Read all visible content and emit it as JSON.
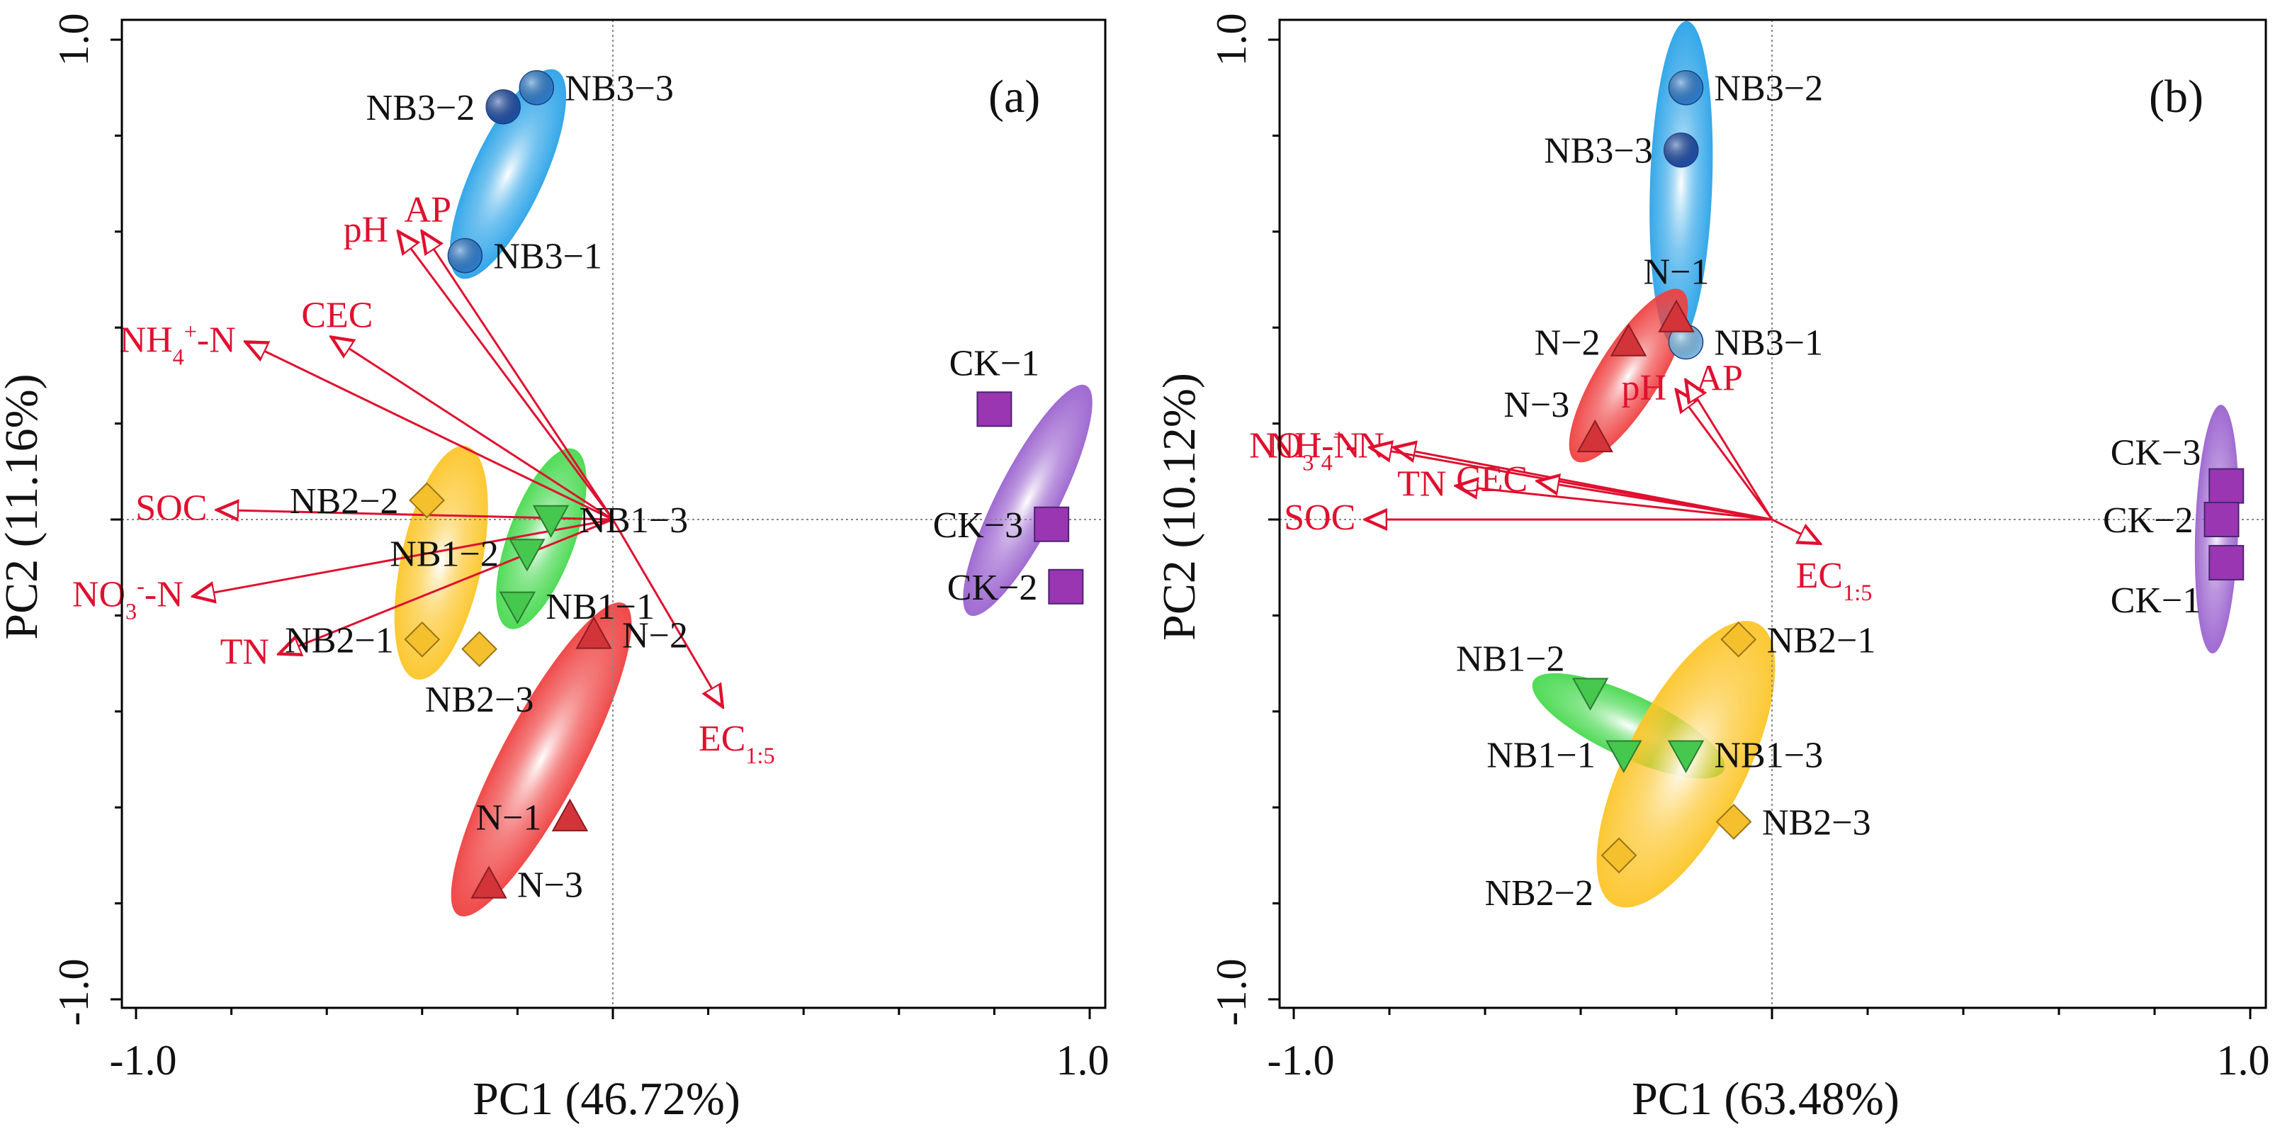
{
  "colors": {
    "vector": "#e0102f",
    "axis": "#000000",
    "text": "#111111",
    "grid": "#888888"
  },
  "groups": {
    "NB3": {
      "color": "#2aa3e8",
      "marker": "circle",
      "marker_color": "#2d7fd0"
    },
    "N": {
      "color": "#ef4040",
      "marker": "triangle-up",
      "marker_color": "#d2343a"
    },
    "NB1": {
      "color": "#47d94f",
      "marker": "triangle-down",
      "marker_color": "#46c74e"
    },
    "NB2": {
      "color": "#fcc528",
      "marker": "diamond",
      "marker_color": "#f5c02e"
    },
    "CK": {
      "color": "#9b63cf",
      "marker": "square",
      "marker_color": "#9a36b2"
    }
  },
  "chart_data": [
    {
      "type": "scatter",
      "panel_label": "(a)",
      "xlabel": "PC1 (46.72%)",
      "ylabel": "PC2 (11.16%)",
      "xlim": [
        -1.0,
        1.0
      ],
      "ylim": [
        -1.0,
        1.0
      ],
      "xticks": [
        "-1.0",
        "1.0"
      ],
      "yticks": [
        "1.0",
        "-1.0"
      ],
      "points": [
        {
          "label": "NB3−3",
          "group": "NB3",
          "x": -0.16,
          "y": 0.9,
          "marker_color": "#2d7fd0",
          "label_side": "right"
        },
        {
          "label": "NB3−2",
          "group": "NB3",
          "x": -0.23,
          "y": 0.86,
          "marker_color": "#1f4fa8",
          "label_side": "left"
        },
        {
          "label": "NB3−1",
          "group": "NB3",
          "x": -0.31,
          "y": 0.55,
          "marker_color": "#2d7fd0",
          "label_side": "right"
        },
        {
          "label": "NB1−3",
          "group": "NB1",
          "x": -0.13,
          "y": 0.0,
          "label_side": "right"
        },
        {
          "label": "NB1−1",
          "group": "NB1",
          "x": -0.2,
          "y": -0.18,
          "label_side": "right"
        },
        {
          "label": "NB1−2",
          "group": "NB1",
          "x": -0.18,
          "y": -0.07,
          "label_side": "left"
        },
        {
          "label": "NB2−2",
          "group": "NB2",
          "x": -0.39,
          "y": 0.04,
          "label_side": "left"
        },
        {
          "label": "NB2−1",
          "group": "NB2",
          "x": -0.4,
          "y": -0.25,
          "label_side": "left"
        },
        {
          "label": "NB2−3",
          "group": "NB2",
          "x": -0.28,
          "y": -0.27,
          "label_side": "below"
        },
        {
          "label": "N−2",
          "group": "N",
          "x": -0.04,
          "y": -0.24,
          "label_side": "right"
        },
        {
          "label": "N−1",
          "group": "N",
          "x": -0.09,
          "y": -0.62,
          "label_side": "left"
        },
        {
          "label": "N−3",
          "group": "N",
          "x": -0.26,
          "y": -0.76,
          "label_side": "right"
        },
        {
          "label": "CK−1",
          "group": "CK",
          "x": 0.8,
          "y": 0.23,
          "label_side": "above"
        },
        {
          "label": "CK−3",
          "group": "CK",
          "x": 0.92,
          "y": -0.01,
          "label_side": "left"
        },
        {
          "label": "CK−2",
          "group": "CK",
          "x": 0.95,
          "y": -0.14,
          "label_side": "left"
        }
      ],
      "ellipses": [
        {
          "group": "NB3",
          "cx": -0.22,
          "cy": 0.72,
          "rx": 0.24,
          "ry": 0.075,
          "angle": 65
        },
        {
          "group": "NB2",
          "cx": -0.36,
          "cy": -0.09,
          "rx": 0.25,
          "ry": 0.085,
          "angle": 78
        },
        {
          "group": "NB1",
          "cx": -0.15,
          "cy": -0.04,
          "rx": 0.2,
          "ry": 0.07,
          "angle": 70
        },
        {
          "group": "N",
          "cx": -0.15,
          "cy": -0.5,
          "rx": 0.37,
          "ry": 0.085,
          "angle": 62
        },
        {
          "group": "CK",
          "cx": 0.87,
          "cy": 0.04,
          "rx": 0.27,
          "ry": 0.065,
          "angle": 63
        }
      ],
      "vectors": [
        {
          "label": "SOC",
          "x": -0.83,
          "y": 0.02,
          "label_anchor": "left",
          "sub": "",
          "sup": ""
        },
        {
          "label": "NH4+-N",
          "x": -0.77,
          "y": 0.37,
          "label_anchor": "left"
        },
        {
          "label": "CEC",
          "x": -0.59,
          "y": 0.38,
          "label_anchor": "above"
        },
        {
          "label": "pH",
          "x": -0.45,
          "y": 0.6,
          "label_anchor": "left"
        },
        {
          "label": "AP",
          "x": -0.4,
          "y": 0.6,
          "label_anchor": "above"
        },
        {
          "label": "NO3--N",
          "x": -0.88,
          "y": -0.16,
          "label_anchor": "left"
        },
        {
          "label": "TN",
          "x": -0.7,
          "y": -0.28,
          "label_anchor": "left"
        },
        {
          "label": "EC1:5",
          "x": 0.23,
          "y": -0.39,
          "label_anchor": "below"
        }
      ]
    },
    {
      "type": "scatter",
      "panel_label": "(b)",
      "xlabel": "PC1 (63.48%)",
      "ylabel": "PC2 (10.12%)",
      "xlim": [
        -1.0,
        1.0
      ],
      "ylim": [
        -1.0,
        1.0
      ],
      "xticks": [
        "-1.0",
        "1.0"
      ],
      "yticks": [
        "1.0",
        "-1.0"
      ],
      "points": [
        {
          "label": "NB3−2",
          "group": "NB3",
          "x": -0.18,
          "y": 0.9,
          "marker_color": "#2d7fd0",
          "label_side": "right"
        },
        {
          "label": "NB3−3",
          "group": "NB3",
          "x": -0.19,
          "y": 0.77,
          "marker_color": "#1f4fa8",
          "label_side": "left"
        },
        {
          "label": "NB3−1",
          "group": "NB3",
          "x": -0.18,
          "y": 0.37,
          "marker_color": "#7fbde8",
          "label_side": "right"
        },
        {
          "label": "N−1",
          "group": "N",
          "x": -0.2,
          "y": 0.42,
          "label_side": "above"
        },
        {
          "label": "N−2",
          "group": "N",
          "x": -0.3,
          "y": 0.37,
          "label_side": "left"
        },
        {
          "label": "N−3",
          "group": "N",
          "x": -0.37,
          "y": 0.17,
          "label_side": "above-left"
        },
        {
          "label": "CK−3",
          "group": "CK",
          "x": 0.95,
          "y": 0.07,
          "label_side": "above-left"
        },
        {
          "label": "CK−2",
          "group": "CK",
          "x": 0.94,
          "y": 0.0,
          "label_side": "left"
        },
        {
          "label": "CK−1",
          "group": "CK",
          "x": 0.95,
          "y": -0.09,
          "label_side": "below-left"
        },
        {
          "label": "NB2−1",
          "group": "NB2",
          "x": -0.07,
          "y": -0.25,
          "label_side": "right"
        },
        {
          "label": "NB1−2",
          "group": "NB1",
          "x": -0.38,
          "y": -0.36,
          "label_side": "above-left"
        },
        {
          "label": "NB1−1",
          "group": "NB1",
          "x": -0.31,
          "y": -0.49,
          "label_side": "left"
        },
        {
          "label": "NB1−3",
          "group": "NB1",
          "x": -0.18,
          "y": -0.49,
          "label_side": "right"
        },
        {
          "label": "NB2−3",
          "group": "NB2",
          "x": -0.08,
          "y": -0.63,
          "label_side": "right"
        },
        {
          "label": "NB2−2",
          "group": "NB2",
          "x": -0.32,
          "y": -0.7,
          "label_side": "below-left"
        }
      ],
      "ellipses": [
        {
          "group": "NB3",
          "cx": -0.19,
          "cy": 0.7,
          "rx": 0.34,
          "ry": 0.065,
          "angle": 88
        },
        {
          "group": "N",
          "cx": -0.3,
          "cy": 0.3,
          "rx": 0.21,
          "ry": 0.065,
          "angle": 58
        },
        {
          "group": "NB1",
          "cx": -0.3,
          "cy": -0.43,
          "rx": 0.22,
          "ry": 0.065,
          "angle": -25
        },
        {
          "group": "NB2",
          "cx": -0.18,
          "cy": -0.51,
          "rx": 0.33,
          "ry": 0.125,
          "angle": 63
        },
        {
          "group": "CK",
          "cx": 0.93,
          "cy": -0.02,
          "rx": 0.26,
          "ry": 0.045,
          "angle": 88
        }
      ],
      "vectors": [
        {
          "label": "NH4+-N",
          "x": -0.79,
          "y": 0.15,
          "label_anchor": "left"
        },
        {
          "label": "NO3--N",
          "x": -0.84,
          "y": 0.15,
          "label_anchor": "left"
        },
        {
          "label": "TN",
          "x": -0.66,
          "y": 0.07,
          "label_anchor": "left"
        },
        {
          "label": "CEC",
          "x": -0.49,
          "y": 0.08,
          "label_anchor": "left"
        },
        {
          "label": "SOC",
          "x": -0.85,
          "y": 0.0,
          "label_anchor": "left"
        },
        {
          "label": "pH",
          "x": -0.2,
          "y": 0.27,
          "label_anchor": "left"
        },
        {
          "label": "AP",
          "x": -0.18,
          "y": 0.29,
          "label_anchor": "right"
        },
        {
          "label": "EC1:5",
          "x": 0.1,
          "y": -0.05,
          "label_anchor": "below"
        }
      ]
    }
  ]
}
